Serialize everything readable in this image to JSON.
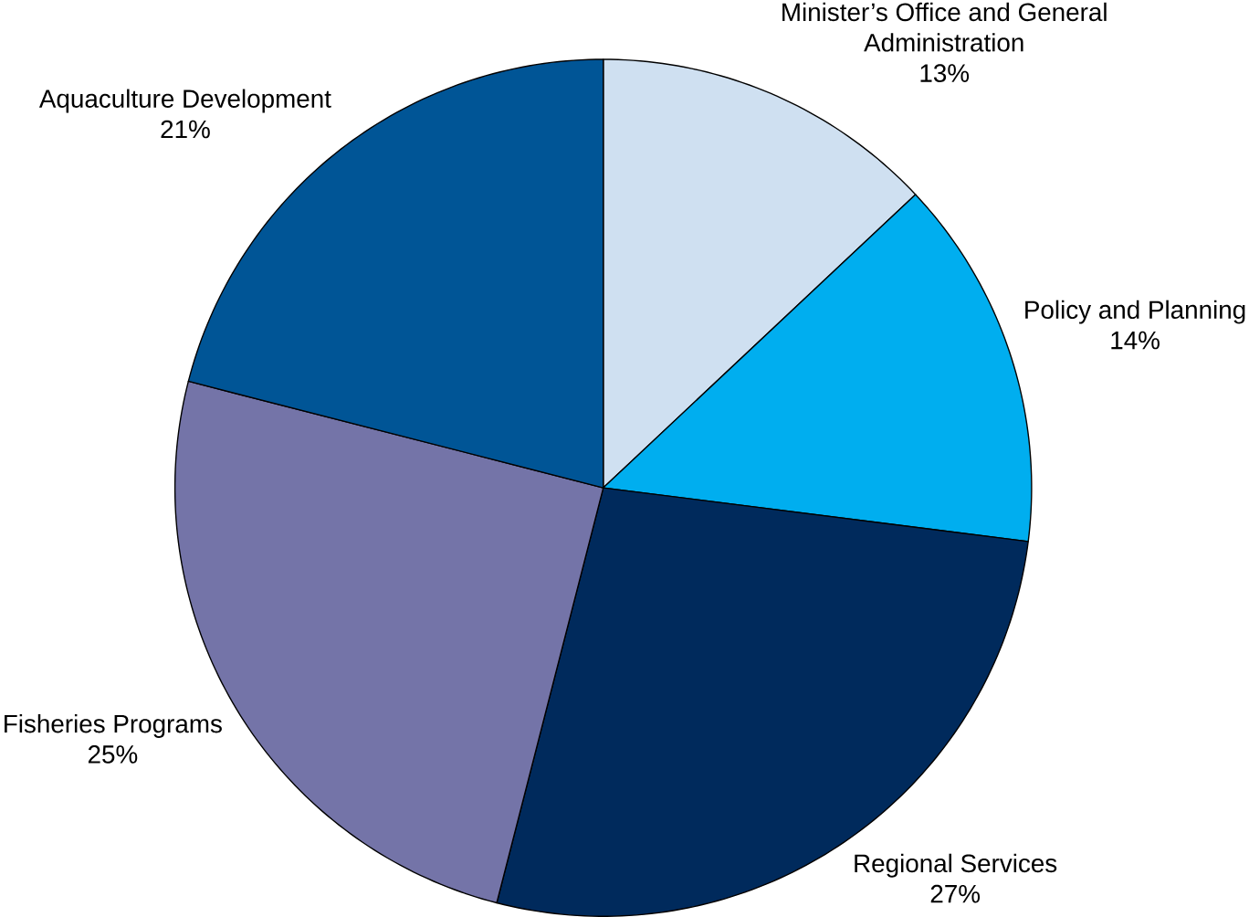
{
  "chart_data": {
    "type": "pie",
    "categories": [
      "Minister’s Office and General Administration",
      "Policy and Planning",
      "Regional Services",
      "Fisheries Programs",
      "Aquaculture Development"
    ],
    "values": [
      13,
      14,
      27,
      25,
      21
    ],
    "value_labels": [
      "13%",
      "14%",
      "27%",
      "25%",
      "21%"
    ],
    "colors": [
      "#cfe0f1",
      "#00aeef",
      "#002a5c",
      "#7474a8",
      "#005596"
    ]
  }
}
